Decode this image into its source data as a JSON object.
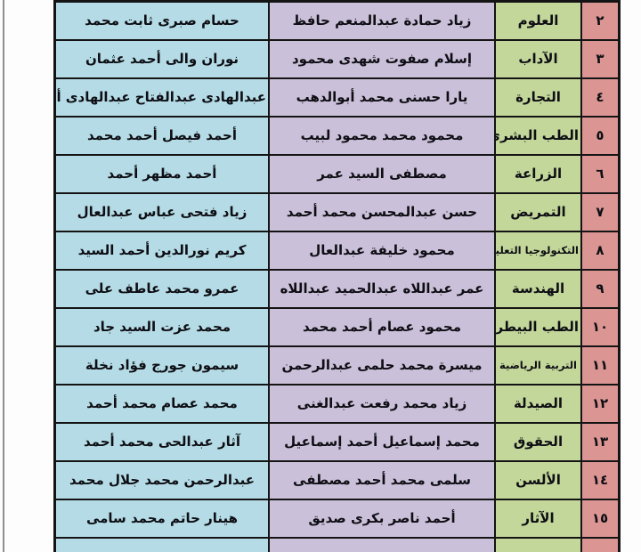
{
  "document": {
    "description": "students-by-faculty-list",
    "direction": "rtl"
  },
  "colors": {
    "number_column_bg": "#db9593",
    "faculty_column_bg": "#c3d79a",
    "center_name_column_bg": "#cbc0d9",
    "left_name_column_bg": "#b5dce6",
    "grid_border": "#141414",
    "page_bg": "#fdfdfd",
    "margin_line": "#8f8f8f"
  },
  "table": {
    "rows": [
      {
        "num": "٢",
        "faculty": "العلوم",
        "name_center": "زياد حمادة عبدالمنعم حافظ",
        "name_left": "حسام صبرى ثابت محمد"
      },
      {
        "num": "٣",
        "faculty": "الآداب",
        "name_center": "إسلام صفوت شهدى محمود",
        "name_left": "نوران والى أحمد عثمان"
      },
      {
        "num": "٤",
        "faculty": "التجارة",
        "name_center": "يارا حسنى محمد أبوالدهب",
        "name_left": "عبدالهادى عبدالفتاح عبدالهادى أحمد"
      },
      {
        "num": "٥",
        "faculty": "الطب البشرى",
        "name_center": "محمود محمد محمود لبيب",
        "name_left": "أحمد فيصل أحمد محمد"
      },
      {
        "num": "٦",
        "faculty": "الزراعة",
        "name_center": "مصطفى السيد عمر",
        "name_left": "أحمد مظهر أحمد"
      },
      {
        "num": "٧",
        "faculty": "التمريض",
        "name_center": "حسن عبدالمحسن محمد أحمد",
        "name_left": "زياد فتحى عباس عبدالعال"
      },
      {
        "num": "٨",
        "faculty": "التكنولوجيا التعليم",
        "name_center": "محمود خليفة عبدالعال",
        "name_left": "كريم نورالدين أحمد السيد"
      },
      {
        "num": "٩",
        "faculty": "الهندسة",
        "name_center": "عمر عبداللاه عبدالحميد عبداللاه",
        "name_left": "عمرو محمد عاطف على"
      },
      {
        "num": "١٠",
        "faculty": "الطب البيطرى",
        "name_center": "محمود عصام أحمد محمد",
        "name_left": "محمد عزت السيد جاد"
      },
      {
        "num": "١١",
        "faculty": "التربية الرياضية",
        "name_center": "ميسرة محمد حلمى عبدالرحمن",
        "name_left": "سيمون جورج فؤاد نخلة"
      },
      {
        "num": "١٢",
        "faculty": "الصيدلة",
        "name_center": "زياد محمد رفعت عبدالغنى",
        "name_left": "محمد عصام محمد أحمد"
      },
      {
        "num": "١٣",
        "faculty": "الحقوق",
        "name_center": "محمد إسماعيل أحمد إسماعيل",
        "name_left": "آثار عبدالحى محمد أحمد"
      },
      {
        "num": "١٤",
        "faculty": "الألسن",
        "name_center": "سلمى محمد أحمد مصطفى",
        "name_left": "عبدالرحمن محمد جلال محمد"
      },
      {
        "num": "١٥",
        "faculty": "الآثار",
        "name_center": "أحمد ناصر بكرى صديق",
        "name_left": "هينار حاتم محمد سامى"
      },
      {
        "num": "",
        "faculty": "",
        "name_center": "",
        "name_left": ""
      }
    ]
  }
}
